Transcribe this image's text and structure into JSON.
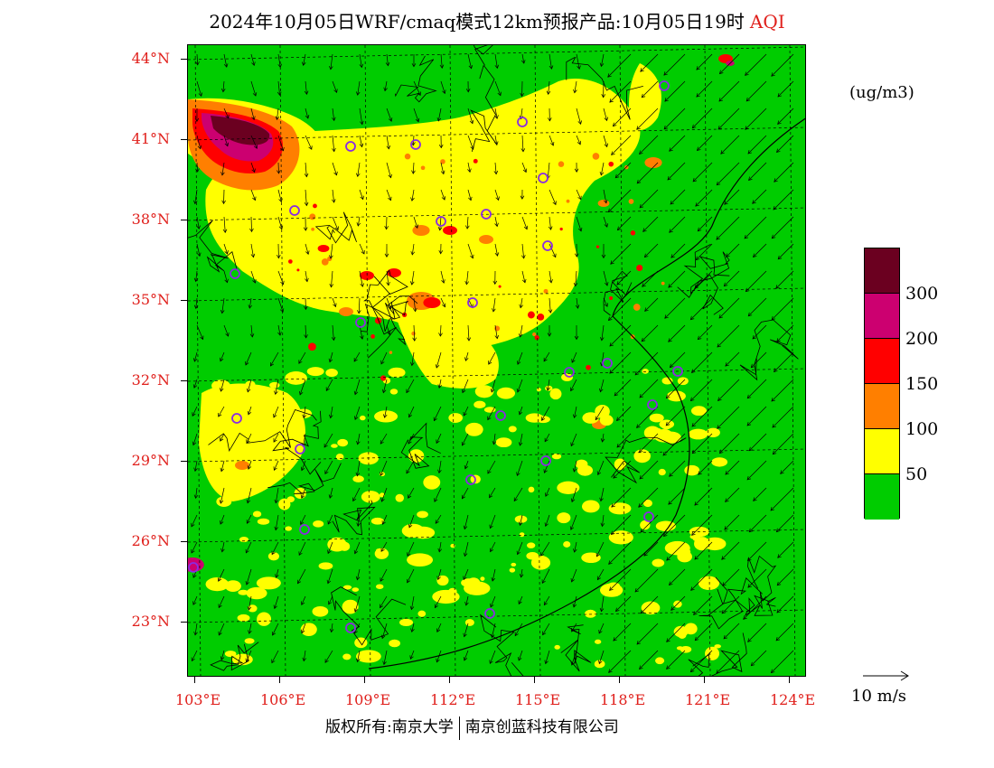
{
  "title": {
    "main": "2024年10月05日WRF/cmaq模式12km预报产品:10月05日19时",
    "pollutant": "AQI"
  },
  "map": {
    "lat_labels": [
      "44°N",
      "41°N",
      "38°N",
      "35°N",
      "32°N",
      "29°N",
      "26°N",
      "23°N"
    ],
    "lon_labels": [
      "103°E",
      "106°E",
      "109°E",
      "112°E",
      "115°E",
      "118°E",
      "121°E",
      "124°E"
    ],
    "background_level_color": "#00cc00",
    "city_marker_color": "#8a2be2",
    "wind_vector_color": "#000000",
    "graticule_style": "dashed"
  },
  "colorbar": {
    "unit": "(ug/m3)",
    "levels": [
      {
        "color": "#6b0020"
      },
      {
        "color": "#cc0070"
      },
      {
        "color": "#ff0000"
      },
      {
        "color": "#ff7f00"
      },
      {
        "color": "#ffff00"
      },
      {
        "color": "#00cc00"
      }
    ],
    "labels": [
      "300",
      "200",
      "150",
      "100",
      "50"
    ]
  },
  "reference_vector": {
    "label": "10 m/s"
  },
  "footer": {
    "copyright": "版权所有:南京大学",
    "company": "南京创蓝科技有限公司"
  }
}
